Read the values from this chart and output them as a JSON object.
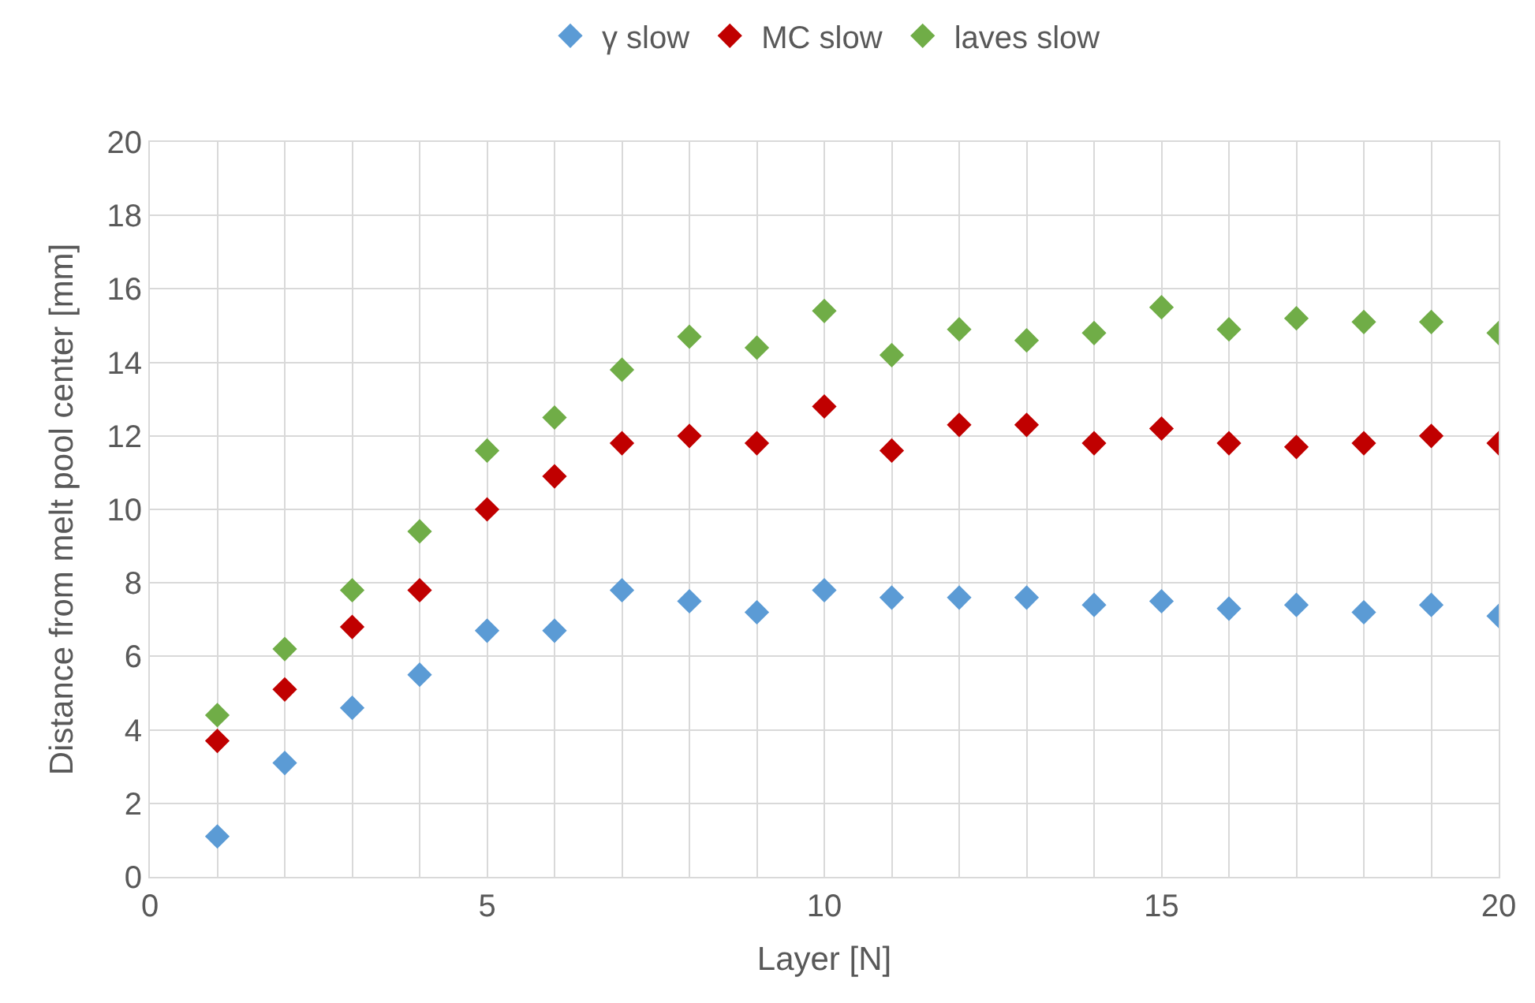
{
  "chart_data": {
    "type": "scatter",
    "xlabel": "Layer [N]",
    "ylabel": "Distance from melt pool center [mm]",
    "x": [
      1,
      2,
      3,
      4,
      5,
      6,
      7,
      8,
      9,
      10,
      11,
      12,
      13,
      14,
      15,
      16,
      17,
      18,
      19,
      20
    ],
    "series": [
      {
        "name": "γ slow",
        "color": "#5b9bd5",
        "values": [
          1.1,
          3.1,
          4.6,
          5.5,
          6.7,
          6.7,
          7.8,
          7.5,
          7.2,
          7.8,
          7.6,
          7.6,
          7.6,
          7.4,
          7.5,
          7.3,
          7.4,
          7.2,
          7.4,
          7.1
        ]
      },
      {
        "name": "MC slow",
        "color": "#c00000",
        "values": [
          3.7,
          5.1,
          6.8,
          7.8,
          10.0,
          10.9,
          11.8,
          12.0,
          11.8,
          12.8,
          11.6,
          12.3,
          12.3,
          11.8,
          12.2,
          11.8,
          11.7,
          11.8,
          12.0,
          11.8
        ]
      },
      {
        "name": "laves slow",
        "color": "#70ad47",
        "values": [
          4.4,
          6.2,
          7.8,
          9.4,
          11.6,
          12.5,
          13.8,
          14.7,
          14.4,
          15.4,
          14.2,
          14.9,
          14.6,
          14.8,
          15.5,
          14.9,
          15.2,
          15.1,
          15.1,
          14.8
        ]
      }
    ],
    "xlim": [
      0,
      20
    ],
    "xticks": [
      0,
      {
        "value": 1,
        "label": null
      },
      {
        "value": 2,
        "label": null
      },
      {
        "value": 3,
        "label": null
      },
      {
        "value": 4,
        "label": null
      },
      5,
      {
        "value": 6,
        "label": null
      },
      {
        "value": 7,
        "label": null
      },
      {
        "value": 8,
        "label": null
      },
      {
        "value": 9,
        "label": null
      },
      10,
      {
        "value": 11,
        "label": null
      },
      {
        "value": 12,
        "label": null
      },
      {
        "value": 13,
        "label": null
      },
      {
        "value": 14,
        "label": null
      },
      15,
      {
        "value": 16,
        "label": null
      },
      {
        "value": 17,
        "label": null
      },
      {
        "value": 18,
        "label": null
      },
      {
        "value": 19,
        "label": null
      },
      20
    ],
    "ylim": [
      0,
      20
    ],
    "yticks": [
      0,
      2,
      4,
      6,
      8,
      10,
      12,
      14,
      16,
      18,
      20
    ],
    "grid": true,
    "legend": "top",
    "marker": "diamond"
  }
}
